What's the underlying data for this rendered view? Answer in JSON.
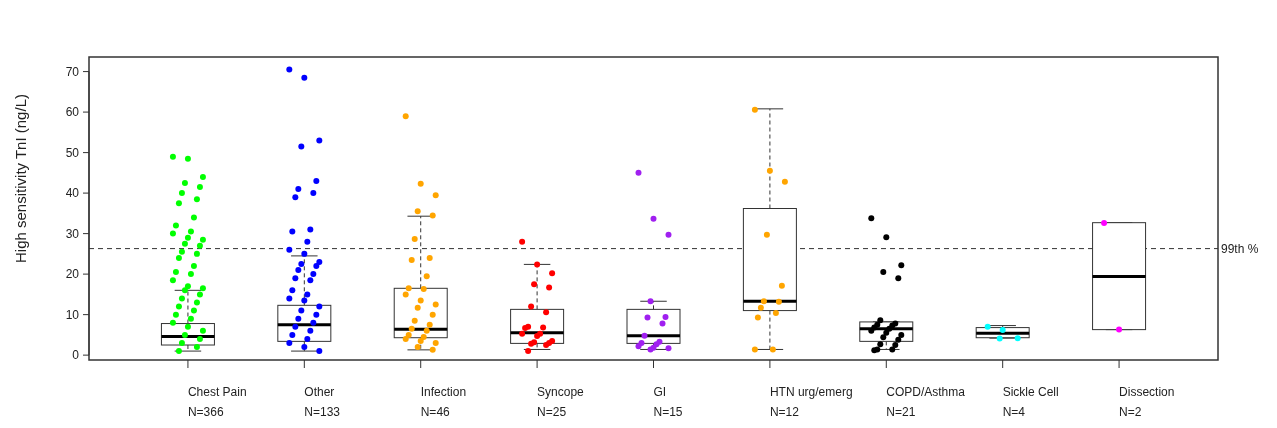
{
  "chart_data": {
    "type": "box",
    "ylabel": "High sensitivity TnI (ng/L)",
    "categories": [
      "Chest Pain\nN=366",
      "Other\nN=133",
      "Infection\nN=46",
      "Syncope\nN=25",
      "GI\nN=15",
      "HTN urg/emerg\nN=12",
      "COPD/Asthma\nN=21",
      "Sickle Cell\nN=4",
      "Dissection\nN=2"
    ],
    "boxes": [
      {
        "low": 1,
        "q1": 2.5,
        "median": 4.6,
        "q3": 7.8,
        "high": 16
      },
      {
        "low": 1,
        "q1": 3.4,
        "median": 7.5,
        "q3": 12.3,
        "high": 24.5
      },
      {
        "low": 1.3,
        "q1": 4.3,
        "median": 6.4,
        "q3": 16.5,
        "high": 34.3
      },
      {
        "low": 1.4,
        "q1": 2.9,
        "median": 5.5,
        "q3": 11.3,
        "high": 22.4
      },
      {
        "low": 1.4,
        "q1": 2.9,
        "median": 4.8,
        "q3": 11.3,
        "high": 13.3
      },
      {
        "low": 1.4,
        "q1": 11,
        "median": 13.3,
        "q3": 36.2,
        "high": 60.8
      },
      {
        "low": 1.4,
        "q1": 3.4,
        "median": 6.5,
        "q3": 8.2,
        "high": 8.2
      },
      {
        "low": 4.2,
        "q1": 4.3,
        "median": 5.4,
        "q3": 6.8,
        "high": 7.3
      },
      {
        "low": 6.3,
        "q1": 6.3,
        "median": 19.4,
        "q3": 32.7,
        "high": 32.7
      }
    ],
    "series": [
      {
        "type": "scatter",
        "color": "#00ff00",
        "x": [
          "Chest Pain\nN=366",
          "Chest Pain\nN=366",
          "Chest Pain\nN=366",
          "Chest Pain\nN=366",
          "Chest Pain\nN=366",
          "Chest Pain\nN=366",
          "Chest Pain\nN=366",
          "Chest Pain\nN=366",
          "Chest Pain\nN=366",
          "Chest Pain\nN=366",
          "Chest Pain\nN=366",
          "Chest Pain\nN=366",
          "Chest Pain\nN=366",
          "Chest Pain\nN=366",
          "Chest Pain\nN=366",
          "Chest Pain\nN=366",
          "Chest Pain\nN=366",
          "Chest Pain\nN=366",
          "Chest Pain\nN=366",
          "Chest Pain\nN=366",
          "Chest Pain\nN=366",
          "Chest Pain\nN=366",
          "Chest Pain\nN=366",
          "Chest Pain\nN=366",
          "Chest Pain\nN=366",
          "Chest Pain\nN=366",
          "Chest Pain\nN=366",
          "Chest Pain\nN=366",
          "Chest Pain\nN=366",
          "Chest Pain\nN=366",
          "Chest Pain\nN=366",
          "Chest Pain\nN=366",
          "Chest Pain\nN=366",
          "Chest Pain\nN=366",
          "Chest Pain\nN=366",
          "Chest Pain\nN=366",
          "Chest Pain\nN=366",
          "Chest Pain\nN=366",
          "Chest Pain\nN=366",
          "Chest Pain\nN=366",
          "Chest Pain\nN=366"
        ],
        "values": [
          49,
          48.5,
          44,
          42.5,
          41.5,
          40,
          38.5,
          37.5,
          34,
          32,
          30.5,
          30,
          29,
          28.5,
          27.5,
          27,
          25.5,
          25,
          24,
          22,
          20.5,
          20,
          18.5,
          17,
          16.5,
          16,
          15,
          14,
          13,
          12,
          11,
          10,
          9,
          8,
          7,
          6,
          5,
          4,
          3,
          2,
          1
        ]
      },
      {
        "type": "scatter",
        "color": "#0000ff",
        "x": [
          "Other\nN=133",
          "Other\nN=133",
          "Other\nN=133",
          "Other\nN=133",
          "Other\nN=133",
          "Other\nN=133",
          "Other\nN=133",
          "Other\nN=133",
          "Other\nN=133",
          "Other\nN=133",
          "Other\nN=133",
          "Other\nN=133",
          "Other\nN=133",
          "Other\nN=133",
          "Other\nN=133",
          "Other\nN=133",
          "Other\nN=133",
          "Other\nN=133",
          "Other\nN=133",
          "Other\nN=133",
          "Other\nN=133",
          "Other\nN=133",
          "Other\nN=133",
          "Other\nN=133",
          "Other\nN=133",
          "Other\nN=133",
          "Other\nN=133",
          "Other\nN=133",
          "Other\nN=133",
          "Other\nN=133",
          "Other\nN=133",
          "Other\nN=133",
          "Other\nN=133",
          "Other\nN=133",
          "Other\nN=133",
          "Other\nN=133"
        ],
        "values": [
          70.5,
          68.5,
          53,
          51.5,
          43,
          41,
          40,
          39,
          31,
          30.5,
          28,
          26,
          25,
          23,
          22.5,
          22,
          21,
          20,
          19,
          18.5,
          16,
          15,
          14,
          13.5,
          12,
          11,
          10,
          9,
          8,
          7,
          6,
          5,
          4,
          3,
          2,
          1
        ]
      },
      {
        "type": "scatter",
        "color": "#ffa500",
        "x": [
          "Infection\nN=46",
          "Infection\nN=46",
          "Infection\nN=46",
          "Infection\nN=46",
          "Infection\nN=46",
          "Infection\nN=46",
          "Infection\nN=46",
          "Infection\nN=46",
          "Infection\nN=46",
          "Infection\nN=46",
          "Infection\nN=46",
          "Infection\nN=46",
          "Infection\nN=46",
          "Infection\nN=46",
          "Infection\nN=46",
          "Infection\nN=46",
          "Infection\nN=46",
          "Infection\nN=46",
          "Infection\nN=46",
          "Infection\nN=46",
          "Infection\nN=46",
          "Infection\nN=46",
          "Infection\nN=46",
          "Infection\nN=46",
          "Infection\nN=46",
          "Infection\nN=46",
          "Infection\nN=46"
        ],
        "values": [
          59,
          42.3,
          39.5,
          35.5,
          34.5,
          28.7,
          24,
          23.5,
          19.5,
          16.5,
          16.3,
          15,
          13.5,
          12.5,
          11.7,
          10,
          8.5,
          7.5,
          6.5,
          6,
          5,
          4.5,
          4,
          3.5,
          3,
          2,
          1.3
        ]
      },
      {
        "type": "scatter",
        "color": "#ff0000",
        "x": [
          "Syncope\nN=25",
          "Syncope\nN=25",
          "Syncope\nN=25",
          "Syncope\nN=25",
          "Syncope\nN=25",
          "Syncope\nN=25",
          "Syncope\nN=25",
          "Syncope\nN=25",
          "Syncope\nN=25",
          "Syncope\nN=25",
          "Syncope\nN=25",
          "Syncope\nN=25",
          "Syncope\nN=25",
          "Syncope\nN=25",
          "Syncope\nN=25",
          "Syncope\nN=25",
          "Syncope\nN=25",
          "Syncope\nN=25",
          "Syncope\nN=25"
        ],
        "values": [
          28,
          22.4,
          20.2,
          17.5,
          16.7,
          12,
          10.6,
          7,
          6.8,
          6.7,
          5.3,
          5.3,
          4.7,
          3.5,
          3.2,
          3,
          2.8,
          2.5,
          1
        ]
      },
      {
        "type": "scatter",
        "color": "#a020f0",
        "x": [
          "GI\nN=15",
          "GI\nN=15",
          "GI\nN=15",
          "GI\nN=15",
          "GI\nN=15",
          "GI\nN=15",
          "GI\nN=15",
          "GI\nN=15",
          "GI\nN=15",
          "GI\nN=15",
          "GI\nN=15",
          "GI\nN=15",
          "GI\nN=15",
          "GI\nN=15",
          "GI\nN=15"
        ],
        "values": [
          45,
          33.7,
          29.7,
          13.3,
          9.4,
          9.3,
          7.8,
          4.8,
          3.3,
          3,
          2.7,
          2.2,
          1.8,
          1.7,
          1.4
        ]
      },
      {
        "type": "scatter",
        "color": "#ffa500",
        "x": [
          "HTN urg/emerg\nN=12",
          "HTN urg/emerg\nN=12",
          "HTN urg/emerg\nN=12",
          "HTN urg/emerg\nN=12",
          "HTN urg/emerg\nN=12",
          "HTN urg/emerg\nN=12",
          "HTN urg/emerg\nN=12",
          "HTN urg/emerg\nN=12",
          "HTN urg/emerg\nN=12",
          "HTN urg/emerg\nN=12",
          "HTN urg/emerg\nN=12",
          "HTN urg/emerg\nN=12"
        ],
        "values": [
          60.6,
          45.5,
          42.8,
          29.7,
          17.1,
          13.3,
          13.2,
          11.7,
          10.4,
          9.3,
          1.4,
          1.4
        ]
      },
      {
        "type": "scatter",
        "color": "#000000",
        "x": [
          "COPD/Asthma\nN=21",
          "COPD/Asthma\nN=21",
          "COPD/Asthma\nN=21",
          "COPD/Asthma\nN=21",
          "COPD/Asthma\nN=21",
          "COPD/Asthma\nN=21",
          "COPD/Asthma\nN=21",
          "COPD/Asthma\nN=21",
          "COPD/Asthma\nN=21",
          "COPD/Asthma\nN=21",
          "COPD/Asthma\nN=21",
          "COPD/Asthma\nN=21",
          "COPD/Asthma\nN=21",
          "COPD/Asthma\nN=21",
          "COPD/Asthma\nN=21",
          "COPD/Asthma\nN=21",
          "COPD/Asthma\nN=21",
          "COPD/Asthma\nN=21",
          "COPD/Asthma\nN=21",
          "COPD/Asthma\nN=21",
          "COPD/Asthma\nN=21"
        ],
        "values": [
          33.8,
          29.1,
          22.2,
          20.5,
          19,
          8.6,
          7.8,
          7.5,
          7.3,
          6.8,
          6.5,
          6,
          5.5,
          5,
          4.4,
          3.8,
          2.7,
          2.5,
          1.4,
          1.4,
          1.2
        ]
      },
      {
        "type": "scatter",
        "color": "#00ffff",
        "x": [
          "Sickle Cell\nN=4",
          "Sickle Cell\nN=4",
          "Sickle Cell\nN=4",
          "Sickle Cell\nN=4"
        ],
        "values": [
          7,
          6.2,
          4.2,
          4.1
        ]
      },
      {
        "type": "scatter",
        "color": "#ff00ff",
        "x": [
          "Dissection\nN=2",
          "Dissection\nN=2"
        ],
        "values": [
          32.6,
          6.3
        ]
      }
    ],
    "ylim": [
      -1.2,
      73.6
    ],
    "yticks": [
      0,
      10,
      20,
      30,
      40,
      50,
      60,
      70
    ],
    "ref_lines": [
      {
        "axis": "y",
        "value": 26.3,
        "label": "99th %",
        "line_style": "dashed"
      }
    ],
    "grid": false,
    "marker": "circle"
  }
}
